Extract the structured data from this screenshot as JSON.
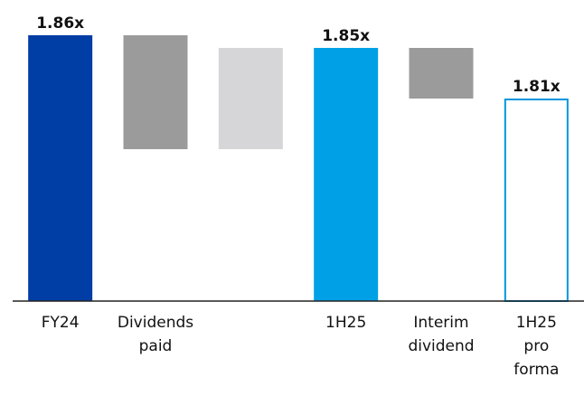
{
  "chart_data": {
    "type": "waterfall",
    "categories": [
      "FY24",
      "Dividends paid",
      null,
      "1H25",
      "Interim dividend",
      "1H25 pro forma"
    ],
    "values": [
      1.86,
      -0.09,
      0.08,
      1.85,
      -0.04,
      1.81
    ],
    "value_labels": [
      "1.86x",
      null,
      null,
      "1.85x",
      null,
      "1.81x"
    ],
    "kinds": [
      "total",
      "delta",
      "delta",
      "total",
      "delta",
      "total"
    ],
    "colors": [
      "#003da5",
      "#9b9b9b",
      "#d6d6d8",
      "#00a0e6",
      "#9b9b9b",
      "#0096dc"
    ],
    "styles": [
      "solid",
      "solid",
      "solid",
      "solid",
      "solid",
      "outline"
    ],
    "ylim": [
      1.65,
      1.87
    ]
  }
}
